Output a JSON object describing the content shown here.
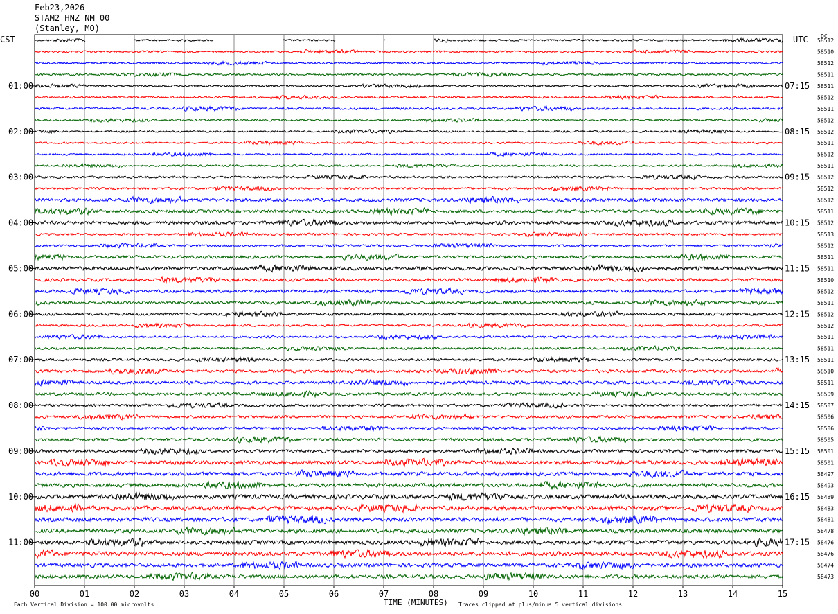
{
  "header": {
    "date": "Feb23,2026",
    "station": "STAM2 HNZ NM 00",
    "location": "(Stanley, MO)"
  },
  "left_label": "CST",
  "right_label": "UTC",
  "dc_label": "DC",
  "footer": {
    "scale_note": "Each Vertical Division = 100.00 microvolts",
    "clip_note": "Traces clipped at plus/minus 5 vertical divisions",
    "xaxis_title": "TIME (MINUTES)"
  },
  "chart_data": {
    "type": "line",
    "title": "Feb23,2026 STAM2 HNZ NM 00 (Stanley, MO)",
    "xlabel": "TIME (MINUTES)",
    "xlim": [
      0,
      15
    ],
    "x_ticks": [
      "00",
      "01",
      "02",
      "03",
      "04",
      "05",
      "06",
      "07",
      "08",
      "09",
      "10",
      "11",
      "12",
      "13",
      "14",
      "15"
    ],
    "trace_count": 48,
    "trace_colors": [
      "#000000",
      "#ff0000",
      "#0000ff",
      "#006400"
    ],
    "left_time_labels": [
      "01:00",
      "02:00",
      "03:00",
      "04:00",
      "05:00",
      "06:00",
      "07:00",
      "08:00",
      "09:00",
      "10:00",
      "11:00"
    ],
    "right_time_labels": [
      "07:15",
      "08:15",
      "09:15",
      "10:15",
      "11:15",
      "12:15",
      "13:15",
      "14:15",
      "15:15",
      "16:15",
      "17:15"
    ],
    "dc_offsets": [
      "58512",
      "58510",
      "58512",
      "58511",
      "58511",
      "58512",
      "58511",
      "58512",
      "58512",
      "58511",
      "58512",
      "58511",
      "58512",
      "58512",
      "58512",
      "58511",
      "58512",
      "58513",
      "58512",
      "58511",
      "58511",
      "58510",
      "58512",
      "58511",
      "58512",
      "58512",
      "58511",
      "58511",
      "58511",
      "58510",
      "58511",
      "58509",
      "58507",
      "58506",
      "58506",
      "58505",
      "58501",
      "58501",
      "58497",
      "58493",
      "58489",
      "58483",
      "58481",
      "58478",
      "58476",
      "58476",
      "58474",
      "58473"
    ],
    "activity_level": [
      0.5,
      0.5,
      0.5,
      0.5,
      0.5,
      0.5,
      0.6,
      0.5,
      0.5,
      0.5,
      0.5,
      0.5,
      0.6,
      0.6,
      0.9,
      0.9,
      0.9,
      0.6,
      0.6,
      0.8,
      0.9,
      0.8,
      0.8,
      0.8,
      0.7,
      0.6,
      0.6,
      0.6,
      0.7,
      0.8,
      0.8,
      0.8,
      0.7,
      0.7,
      0.7,
      0.8,
      0.8,
      1.0,
      1.0,
      1.0,
      1.1,
      1.1,
      1.1,
      1.0,
      1.1,
      1.1,
      1.0,
      1.0
    ]
  }
}
